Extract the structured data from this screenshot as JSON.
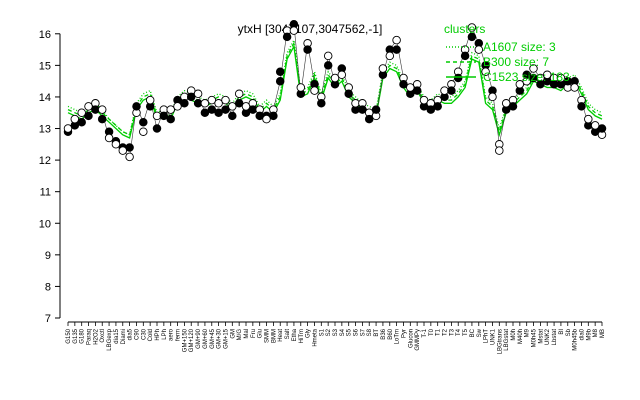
{
  "chart_data": {
    "type": "line",
    "title": "ytxH [3047107,3047562,-1]",
    "xlabel": "",
    "ylabel": "",
    "ylim": [
      7,
      16.5
    ],
    "y_ticks": [
      7,
      8,
      9,
      10,
      11,
      12,
      13,
      14,
      15,
      16
    ],
    "grid": false,
    "legend": {
      "title": "clusters",
      "placement": "top-right",
      "entries": [
        {
          "label": "A1607 size: 3",
          "style": "dotted",
          "color": "#00cc00"
        },
        {
          "label": "B300 size: 7",
          "style": "dashed",
          "color": "#00cc00"
        },
        {
          "label": "C1523 size: 183",
          "style": "solid",
          "color": "#00cc00"
        }
      ]
    },
    "x_tick_labels": [
      "G150",
      "G135",
      "G180",
      "Paraq",
      "H2O2",
      "Oxctl",
      "LBGexp",
      "dia15",
      "Diami",
      "dia5",
      "C90",
      "C30",
      "Cold",
      "HPh",
      "LPh",
      "aero",
      "ferm",
      "GM+150",
      "GM+120",
      "GM+90",
      "GM+60",
      "GM+45",
      "GM+30",
      "GM+15",
      "GM",
      "M/G",
      "Mal",
      "Fru",
      "Glu",
      "SMM",
      "BMM",
      "Heat",
      "Salt",
      "Etha",
      "HiTm",
      "Gly",
      "Hmeta",
      "S1",
      "S2",
      "S3",
      "S4",
      "S5",
      "S6",
      "S7",
      "S8",
      "BT",
      "B36",
      "B60",
      "LoTm",
      "Pyr",
      "Glucon",
      "GMMPy",
      "T-1",
      "T0",
      "T1",
      "T2",
      "T3",
      "T4",
      "T5",
      "BC",
      "Sw",
      "LPhT",
      "UNK1",
      "LBGtrans",
      "LBGstat",
      "M0h",
      "M40h",
      "M9",
      "M0h45",
      "Mstat",
      "UNK2",
      "Lbstat",
      "BI",
      "Sb",
      "M0h45b",
      "dia0",
      "M9b",
      "M8",
      "MB"
    ],
    "cluster_c_mean": [
      13.5,
      13.4,
      13.3,
      13.5,
      13.6,
      13.4,
      13.2,
      13.0,
      12.8,
      12.7,
      13.6,
      13.9,
      14.0,
      13.3,
      13.4,
      13.3,
      13.8,
      14.0,
      13.9,
      13.8,
      13.7,
      13.8,
      13.9,
      13.8,
      13.6,
      13.9,
      14.0,
      13.9,
      13.5,
      13.7,
      13.5,
      13.9,
      15.2,
      15.6,
      14.0,
      14.1,
      14.6,
      13.9,
      14.6,
      14.3,
      14.5,
      14.0,
      13.8,
      13.6,
      13.5,
      13.4,
      14.6,
      14.9,
      14.8,
      14.3,
      14.0,
      14.2,
      13.8,
      13.7,
      13.9,
      13.8,
      13.8,
      14.0,
      14.3,
      15.2,
      15.1,
      13.8,
      13.6,
      12.8,
      13.5,
      13.7,
      13.9,
      14.1,
      14.5,
      14.4,
      14.3,
      14.3,
      14.2,
      14.4,
      14.5,
      14.1,
      13.6,
      13.4,
      13.3
    ],
    "cluster_a_mean": [
      13.7,
      13.6,
      13.5,
      13.7,
      13.8,
      13.6,
      13.3,
      13.1,
      12.9,
      12.8,
      13.8,
      14.1,
      14.2,
      13.5,
      13.6,
      13.5,
      14.0,
      14.2,
      14.1,
      14.0,
      13.9,
      14.0,
      14.1,
      14.0,
      13.8,
      14.1,
      14.2,
      14.1,
      13.7,
      13.9,
      13.7,
      14.1,
      15.4,
      15.8,
      14.2,
      14.3,
      14.8,
      14.1,
      14.8,
      14.5,
      14.7,
      14.2,
      14.0,
      13.8,
      13.7,
      13.6,
      14.8,
      15.1,
      15.0,
      14.5,
      14.2,
      14.4,
      14.0,
      13.9,
      14.1,
      14.0,
      14.0,
      14.2,
      14.5,
      15.4,
      15.3,
      14.0,
      13.8,
      13.0,
      13.7,
      13.9,
      14.1,
      14.3,
      14.7,
      14.6,
      14.5,
      14.5,
      14.4,
      14.6,
      14.7,
      14.3,
      13.8,
      13.6,
      13.5
    ],
    "cluster_b_mean": [
      13.6,
      13.5,
      13.4,
      13.6,
      13.7,
      13.5,
      13.3,
      13.1,
      12.9,
      12.8,
      13.7,
      14.0,
      14.1,
      13.4,
      13.5,
      13.4,
      13.9,
      14.1,
      14.0,
      13.9,
      13.8,
      13.9,
      14.0,
      13.9,
      13.7,
      14.0,
      14.1,
      14.0,
      13.6,
      13.8,
      13.6,
      14.0,
      15.3,
      15.7,
      14.1,
      14.2,
      14.7,
      14.0,
      14.7,
      14.4,
      14.6,
      14.1,
      13.9,
      13.7,
      13.6,
      13.5,
      14.7,
      15.0,
      14.9,
      14.4,
      14.1,
      14.3,
      13.9,
      13.8,
      14.0,
      13.9,
      13.9,
      14.1,
      14.4,
      15.3,
      15.2,
      13.9,
      13.7,
      12.9,
      13.6,
      13.8,
      14.0,
      14.2,
      14.6,
      14.5,
      14.4,
      14.4,
      14.3,
      14.5,
      14.6,
      14.2,
      13.7,
      13.5,
      13.4
    ],
    "gene_values": [
      12.9,
      13.1,
      13.2,
      13.6,
      13.8,
      13.5,
      12.7,
      12.6,
      12.3,
      12.1,
      13.7,
      13.2,
      13.9,
      13.0,
      13.6,
      13.4,
      13.9,
      14.0,
      14.2,
      14.1,
      13.5,
      13.6,
      13.8,
      13.9,
      13.4,
      14.1,
      13.5,
      13.8,
      13.6,
      13.4,
      13.6,
      14.5,
      16.1,
      16.3,
      14.1,
      15.7,
      14.4,
      14.0,
      15.3,
      14.4,
      14.9,
      14.3,
      13.6,
      13.8,
      13.5,
      13.4,
      14.7,
      15.5,
      15.8,
      14.6,
      14.1,
      14.4,
      13.7,
      13.8,
      13.9,
      14.0,
      14.4,
      14.8,
      15.5,
      16.2,
      15.7,
      15.0,
      14.2,
      12.5,
      13.6,
      13.9,
      14.2,
      14.5,
      14.9,
      14.6,
      14.5,
      14.6,
      14.4,
      14.3,
      14.5,
      13.9,
      13.1,
      12.9,
      12.8
    ],
    "points": [
      [
        0,
        12.9,
        "f"
      ],
      [
        0,
        13.0,
        "o"
      ],
      [
        1,
        13.1,
        "f"
      ],
      [
        1,
        13.3,
        "o"
      ],
      [
        2,
        13.2,
        "f"
      ],
      [
        2,
        13.5,
        "o"
      ],
      [
        3,
        13.4,
        "f"
      ],
      [
        3,
        13.7,
        "o"
      ],
      [
        4,
        13.8,
        "o"
      ],
      [
        4,
        13.6,
        "f"
      ],
      [
        5,
        13.3,
        "f"
      ],
      [
        5,
        13.6,
        "o"
      ],
      [
        6,
        12.9,
        "f"
      ],
      [
        6,
        12.7,
        "o"
      ],
      [
        7,
        12.6,
        "f"
      ],
      [
        7,
        12.5,
        "o"
      ],
      [
        8,
        12.4,
        "f"
      ],
      [
        8,
        12.3,
        "o"
      ],
      [
        9,
        12.1,
        "o"
      ],
      [
        9,
        12.4,
        "f"
      ],
      [
        10,
        13.5,
        "o"
      ],
      [
        10,
        13.7,
        "f"
      ],
      [
        11,
        12.9,
        "o"
      ],
      [
        11,
        13.2,
        "f"
      ],
      [
        12,
        13.7,
        "f"
      ],
      [
        12,
        13.9,
        "o"
      ],
      [
        13,
        13.0,
        "f"
      ],
      [
        13,
        13.4,
        "o"
      ],
      [
        14,
        13.6,
        "o"
      ],
      [
        14,
        13.4,
        "f"
      ],
      [
        15,
        13.3,
        "f"
      ],
      [
        15,
        13.6,
        "o"
      ],
      [
        16,
        13.9,
        "f"
      ],
      [
        16,
        13.7,
        "o"
      ],
      [
        17,
        14.0,
        "o"
      ],
      [
        17,
        13.8,
        "f"
      ],
      [
        18,
        14.2,
        "o"
      ],
      [
        18,
        14.0,
        "f"
      ],
      [
        19,
        14.1,
        "o"
      ],
      [
        19,
        13.8,
        "f"
      ],
      [
        20,
        13.5,
        "f"
      ],
      [
        20,
        13.8,
        "o"
      ],
      [
        21,
        13.6,
        "f"
      ],
      [
        21,
        13.9,
        "o"
      ],
      [
        22,
        13.8,
        "o"
      ],
      [
        22,
        13.5,
        "f"
      ],
      [
        23,
        13.9,
        "o"
      ],
      [
        23,
        13.6,
        "f"
      ],
      [
        24,
        13.4,
        "f"
      ],
      [
        24,
        13.7,
        "o"
      ],
      [
        25,
        14.1,
        "o"
      ],
      [
        25,
        13.8,
        "f"
      ],
      [
        26,
        13.5,
        "f"
      ],
      [
        26,
        13.7,
        "o"
      ],
      [
        27,
        13.8,
        "o"
      ],
      [
        27,
        13.6,
        "f"
      ],
      [
        28,
        13.6,
        "o"
      ],
      [
        28,
        13.4,
        "f"
      ],
      [
        29,
        13.4,
        "f"
      ],
      [
        29,
        13.3,
        "o"
      ],
      [
        30,
        13.6,
        "o"
      ],
      [
        30,
        13.4,
        "f"
      ],
      [
        31,
        14.5,
        "f"
      ],
      [
        31,
        14.8,
        "f"
      ],
      [
        32,
        16.1,
        "o"
      ],
      [
        32,
        15.9,
        "f"
      ],
      [
        33,
        16.3,
        "f"
      ],
      [
        33,
        16.1,
        "o"
      ],
      [
        34,
        14.1,
        "f"
      ],
      [
        34,
        14.3,
        "o"
      ],
      [
        35,
        15.7,
        "o"
      ],
      [
        35,
        15.5,
        "f"
      ],
      [
        36,
        14.4,
        "f"
      ],
      [
        36,
        14.2,
        "o"
      ],
      [
        37,
        14.0,
        "o"
      ],
      [
        37,
        13.8,
        "f"
      ],
      [
        38,
        15.3,
        "o"
      ],
      [
        38,
        15.0,
        "f"
      ],
      [
        39,
        14.4,
        "f"
      ],
      [
        39,
        14.6,
        "o"
      ],
      [
        40,
        14.9,
        "f"
      ],
      [
        40,
        14.7,
        "o"
      ],
      [
        41,
        14.3,
        "o"
      ],
      [
        41,
        14.1,
        "f"
      ],
      [
        42,
        13.6,
        "f"
      ],
      [
        42,
        13.8,
        "o"
      ],
      [
        43,
        13.8,
        "o"
      ],
      [
        43,
        13.6,
        "f"
      ],
      [
        44,
        13.5,
        "o"
      ],
      [
        44,
        13.3,
        "f"
      ],
      [
        45,
        13.4,
        "o"
      ],
      [
        45,
        13.6,
        "f"
      ],
      [
        46,
        14.7,
        "f"
      ],
      [
        46,
        14.9,
        "o"
      ],
      [
        47,
        15.5,
        "f"
      ],
      [
        47,
        15.3,
        "o"
      ],
      [
        48,
        15.8,
        "o"
      ],
      [
        48,
        15.5,
        "f"
      ],
      [
        49,
        14.6,
        "o"
      ],
      [
        49,
        14.4,
        "f"
      ],
      [
        50,
        14.1,
        "f"
      ],
      [
        50,
        14.3,
        "o"
      ],
      [
        51,
        14.4,
        "o"
      ],
      [
        51,
        14.2,
        "f"
      ],
      [
        52,
        13.7,
        "f"
      ],
      [
        52,
        13.9,
        "o"
      ],
      [
        53,
        13.8,
        "o"
      ],
      [
        53,
        13.6,
        "f"
      ],
      [
        54,
        13.9,
        "o"
      ],
      [
        54,
        13.7,
        "f"
      ],
      [
        55,
        14.0,
        "f"
      ],
      [
        55,
        14.2,
        "o"
      ],
      [
        56,
        14.4,
        "o"
      ],
      [
        56,
        14.2,
        "f"
      ],
      [
        57,
        14.8,
        "o"
      ],
      [
        57,
        14.6,
        "f"
      ],
      [
        58,
        15.5,
        "o"
      ],
      [
        58,
        15.3,
        "f"
      ],
      [
        59,
        16.2,
        "o"
      ],
      [
        59,
        15.9,
        "f"
      ],
      [
        60,
        15.7,
        "f"
      ],
      [
        60,
        15.5,
        "o"
      ],
      [
        61,
        15.0,
        "f"
      ],
      [
        61,
        14.8,
        "o"
      ],
      [
        62,
        14.2,
        "f"
      ],
      [
        62,
        14.0,
        "o"
      ],
      [
        63,
        12.5,
        "o"
      ],
      [
        63,
        12.3,
        "o"
      ],
      [
        64,
        13.6,
        "f"
      ],
      [
        64,
        13.8,
        "o"
      ],
      [
        65,
        13.9,
        "o"
      ],
      [
        65,
        13.7,
        "f"
      ],
      [
        66,
        14.2,
        "f"
      ],
      [
        66,
        14.4,
        "o"
      ],
      [
        67,
        14.5,
        "o"
      ],
      [
        67,
        14.7,
        "f"
      ],
      [
        68,
        14.9,
        "o"
      ],
      [
        68,
        14.6,
        "f"
      ],
      [
        69,
        14.6,
        "o"
      ],
      [
        69,
        14.4,
        "f"
      ],
      [
        70,
        14.5,
        "f"
      ],
      [
        70,
        14.7,
        "o"
      ],
      [
        71,
        14.6,
        "o"
      ],
      [
        71,
        14.4,
        "f"
      ],
      [
        72,
        14.4,
        "f"
      ],
      [
        72,
        14.6,
        "o"
      ],
      [
        73,
        14.3,
        "o"
      ],
      [
        73,
        14.5,
        "f"
      ],
      [
        74,
        14.5,
        "f"
      ],
      [
        74,
        14.3,
        "o"
      ],
      [
        75,
        13.9,
        "o"
      ],
      [
        75,
        13.7,
        "f"
      ],
      [
        76,
        13.1,
        "f"
      ],
      [
        76,
        13.3,
        "o"
      ],
      [
        77,
        12.9,
        "f"
      ],
      [
        77,
        13.1,
        "o"
      ],
      [
        78,
        12.8,
        "o"
      ],
      [
        78,
        13.0,
        "f"
      ]
    ]
  }
}
